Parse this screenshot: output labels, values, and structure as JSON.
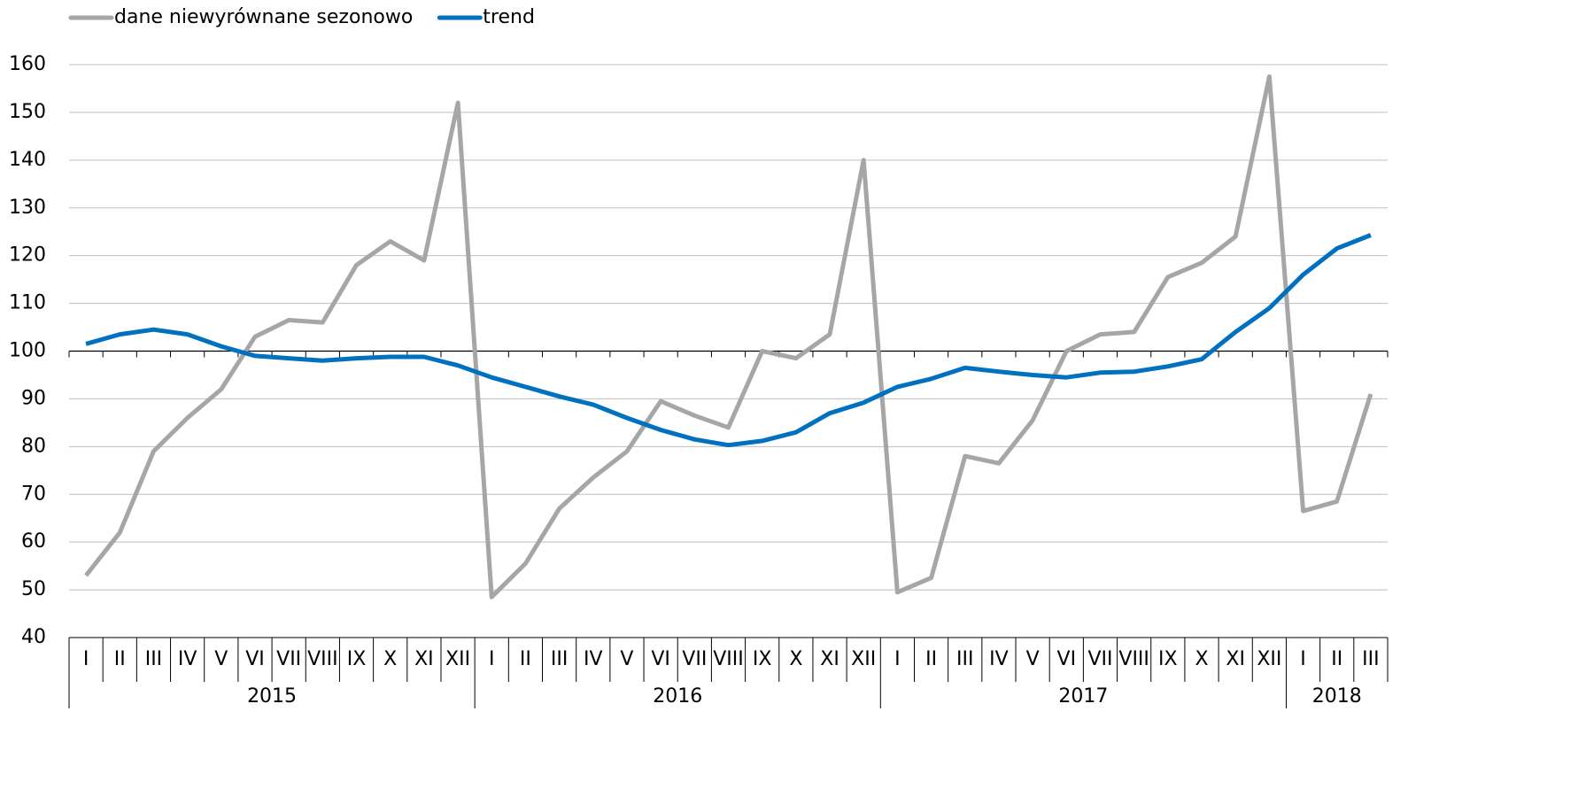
{
  "chart_data": {
    "type": "line",
    "groups": [
      {
        "label": "2015",
        "categories": [
          "I",
          "II",
          "III",
          "IV",
          "V",
          "VI",
          "VII",
          "VIII",
          "IX",
          "X",
          "XI",
          "XII"
        ]
      },
      {
        "label": "2016",
        "categories": [
          "I",
          "II",
          "III",
          "IV",
          "V",
          "VI",
          "VII",
          "VIII",
          "IX",
          "X",
          "XI",
          "XII"
        ]
      },
      {
        "label": "2017",
        "categories": [
          "I",
          "II",
          "III",
          "IV",
          "V",
          "VI",
          "VII",
          "VIII",
          "IX",
          "X",
          "XI",
          "XII"
        ]
      },
      {
        "label": "2018",
        "categories": [
          "I",
          "II",
          "III"
        ]
      }
    ],
    "series": [
      {
        "name": "dane niewyrównane sezonowo",
        "color": "#a6a6a6",
        "values": [
          53,
          62,
          79,
          86,
          92,
          103,
          106.5,
          106,
          118,
          123,
          119,
          152,
          48.5,
          55.5,
          67,
          73.5,
          79,
          89.5,
          86.5,
          84,
          100,
          98.5,
          103.5,
          140,
          49.5,
          52.5,
          78,
          76.5,
          85.5,
          100,
          103.5,
          104,
          115.5,
          118.5,
          124,
          157.5,
          66.5,
          68.5,
          91
        ]
      },
      {
        "name": "trend",
        "color": "#0070c0",
        "values": [
          101.5,
          103.5,
          104.5,
          103.5,
          101,
          99,
          98.5,
          98,
          98.5,
          98.8,
          98.8,
          97,
          94.5,
          92.5,
          90.5,
          88.8,
          86,
          83.5,
          81.5,
          80.3,
          81.2,
          83,
          87,
          89.2,
          92.5,
          94.2,
          96.5,
          95.7,
          95,
          94.5,
          95.5,
          95.7,
          96.8,
          98.3,
          104,
          109,
          116,
          121.5,
          124.3
        ]
      }
    ],
    "ylim": [
      40,
      160
    ],
    "yticks": [
      40,
      50,
      60,
      70,
      80,
      90,
      100,
      110,
      120,
      130,
      140,
      150,
      160
    ],
    "grid": true,
    "baseline": 100,
    "legend": "top-left"
  }
}
